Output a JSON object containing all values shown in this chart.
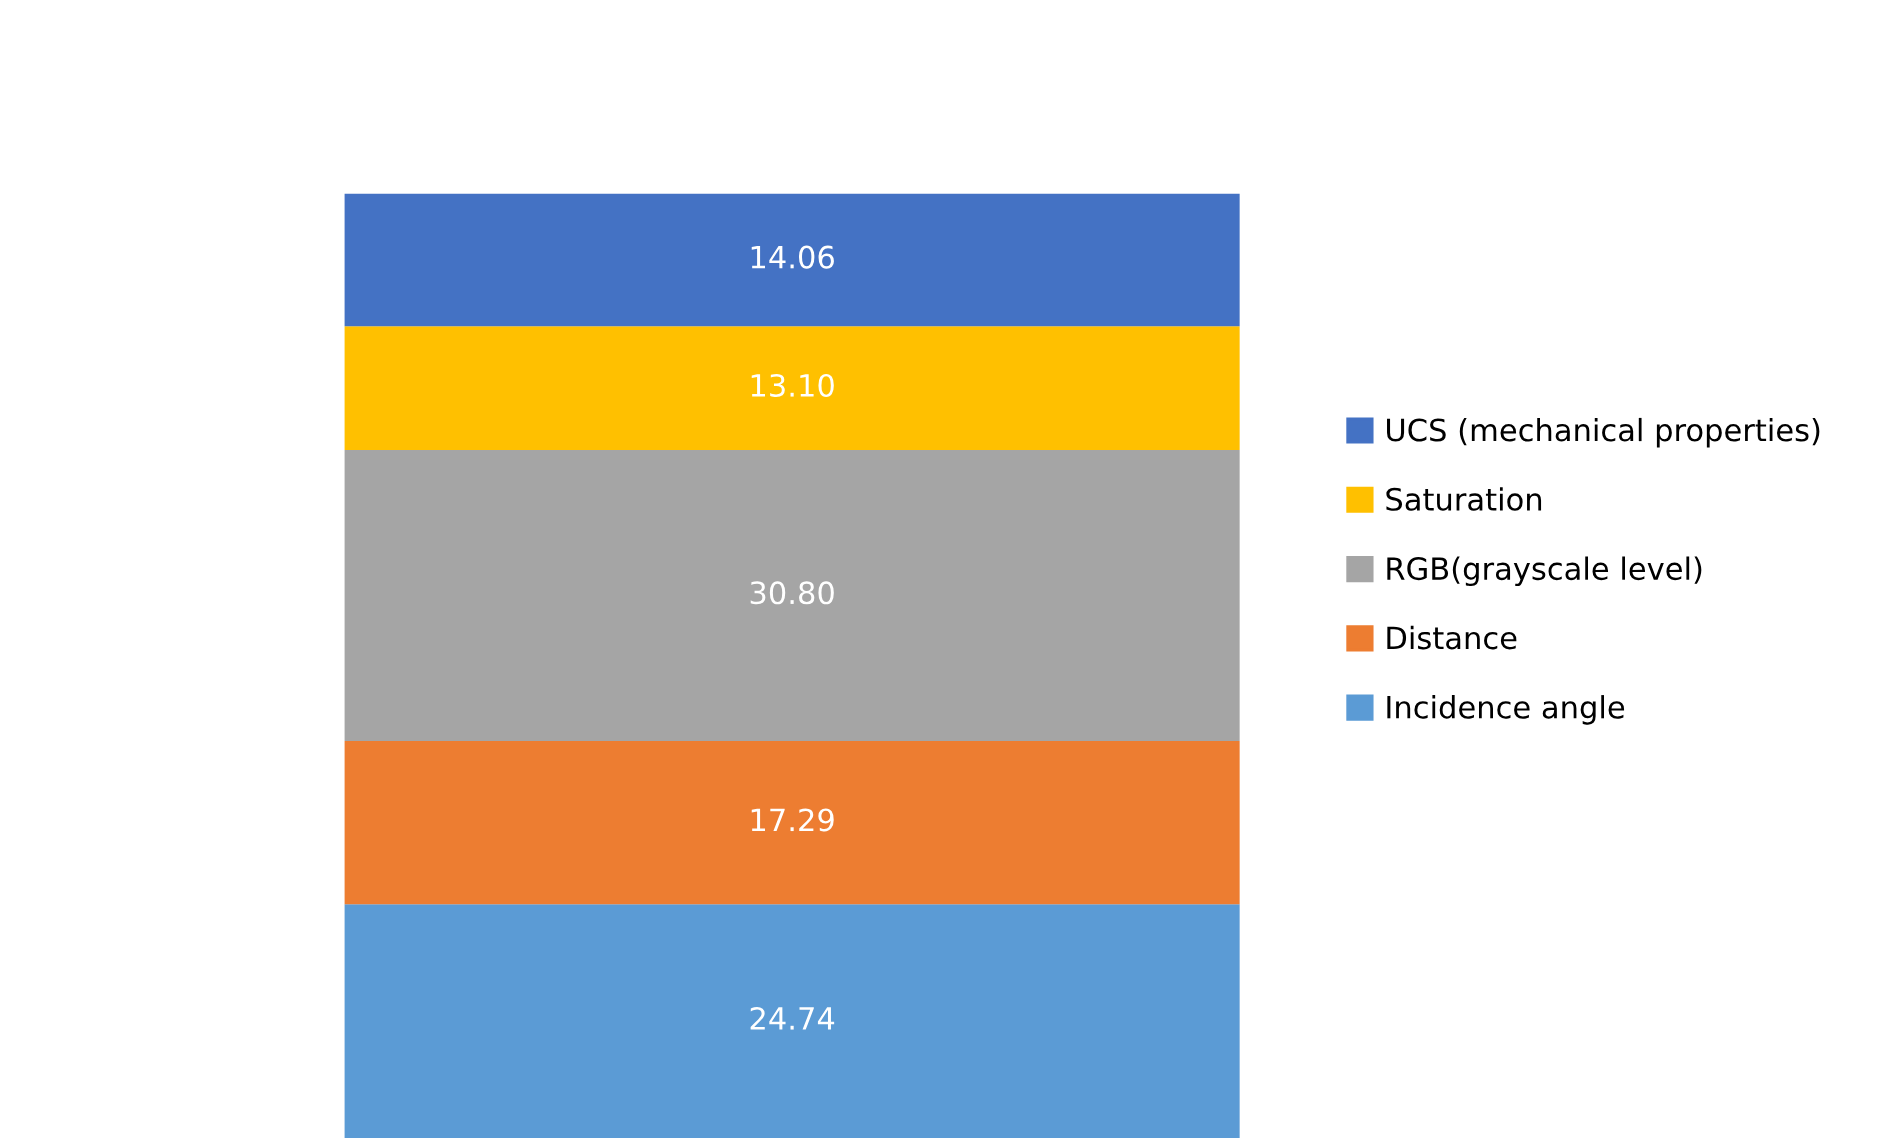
{
  "chart_data": {
    "type": "bar",
    "stacked": true,
    "categories": [
      null
    ],
    "series": [
      {
        "name": "Incidence angle",
        "color": "#5b9bd5",
        "values": [
          24.74
        ],
        "value_labels": [
          "24.74"
        ]
      },
      {
        "name": "Distance",
        "color": "#ed7d31",
        "values": [
          17.29
        ],
        "value_labels": [
          "17.29"
        ]
      },
      {
        "name": "RGB(grayscale level)",
        "color": "#a5a5a5",
        "values": [
          30.8
        ],
        "value_labels": [
          "30.80"
        ]
      },
      {
        "name": "Saturation",
        "color": "#ffc000",
        "values": [
          13.1
        ],
        "value_labels": [
          "13.10"
        ]
      },
      {
        "name": "UCS (mechanical properties)",
        "color": "#4472c4",
        "values": [
          14.06
        ],
        "value_labels": [
          "14.06"
        ]
      }
    ],
    "legend": "right",
    "tick_labels": false
  }
}
